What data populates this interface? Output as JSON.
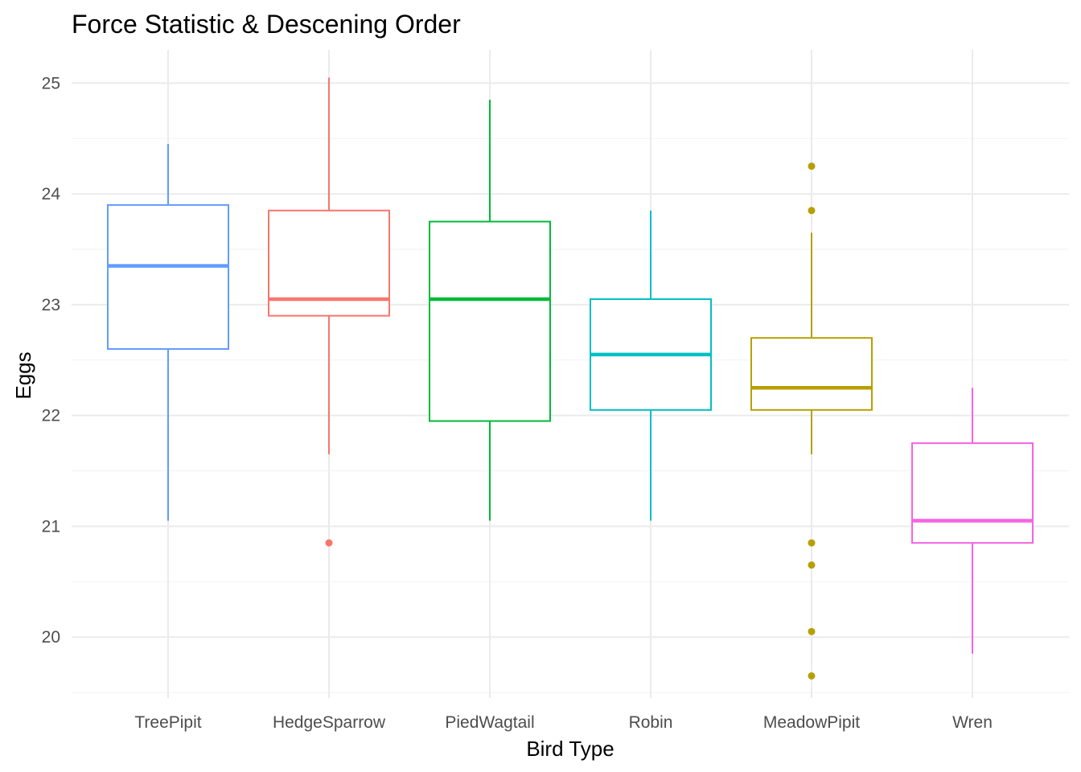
{
  "chart_data": {
    "type": "box",
    "title": "Force Statistic & Descening Order",
    "xlabel": "Bird Type",
    "ylabel": "Eggs",
    "ylim": [
      19.45,
      25.3
    ],
    "yticks": [
      20,
      21,
      22,
      23,
      24,
      25
    ],
    "grid": true,
    "legend": "none",
    "categories": [
      "TreePipit",
      "HedgeSparrow",
      "PiedWagtail",
      "Robin",
      "MeadowPipit",
      "Wren"
    ],
    "boxes": [
      {
        "category": "TreePipit",
        "color": "#619cff",
        "min": 21.05,
        "q1": 22.6,
        "median": 23.35,
        "q3": 23.9,
        "max": 24.45,
        "outliers": []
      },
      {
        "category": "HedgeSparrow",
        "color": "#f8766d",
        "min": 21.65,
        "q1": 22.9,
        "median": 23.05,
        "q3": 23.85,
        "max": 25.05,
        "outliers": [
          20.85
        ]
      },
      {
        "category": "PiedWagtail",
        "color": "#00ba38",
        "min": 21.05,
        "q1": 21.95,
        "median": 23.05,
        "q3": 23.75,
        "max": 24.85,
        "outliers": []
      },
      {
        "category": "Robin",
        "color": "#00bfc4",
        "min": 21.05,
        "q1": 22.05,
        "median": 22.55,
        "q3": 23.05,
        "max": 23.85,
        "outliers": []
      },
      {
        "category": "MeadowPipit",
        "color": "#b79f00",
        "min": 21.65,
        "q1": 22.05,
        "median": 22.25,
        "q3": 22.7,
        "max": 23.65,
        "outliers": [
          24.25,
          23.85,
          20.85,
          20.65,
          20.05,
          19.65
        ]
      },
      {
        "category": "Wren",
        "color": "#f564e3",
        "min": 19.85,
        "q1": 20.85,
        "median": 21.05,
        "q3": 21.75,
        "max": 22.25,
        "outliers": []
      }
    ]
  }
}
